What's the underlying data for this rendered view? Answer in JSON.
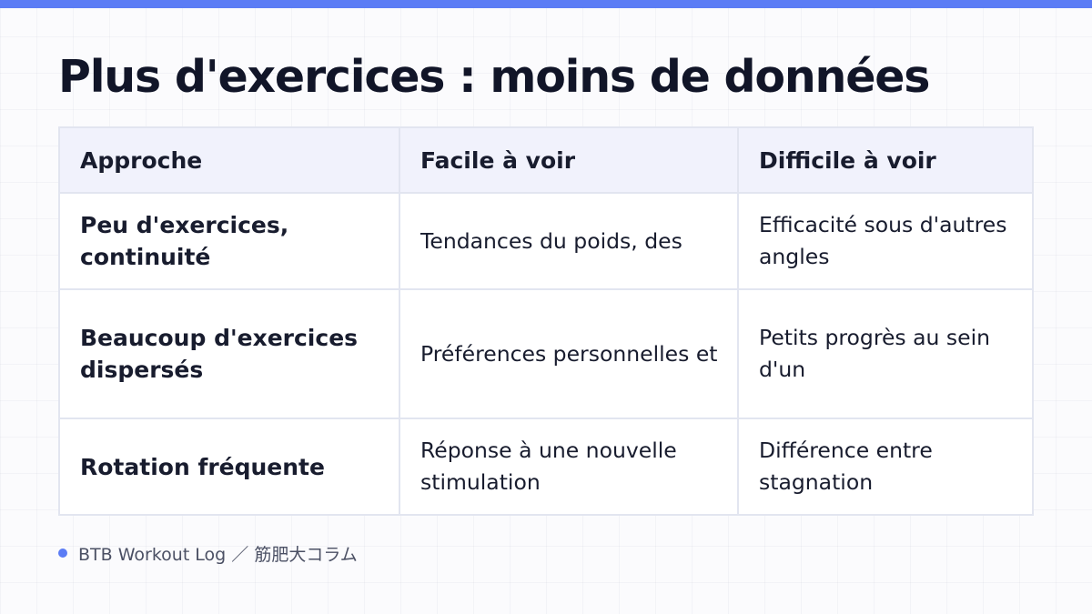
{
  "theme": {
    "accent": "#5b7cf5",
    "header_bg": "#f1f2fc",
    "border": "#e2e5f0",
    "text": "#151a2e"
  },
  "slide": {
    "title": "Plus d'exercices : moins de données"
  },
  "table": {
    "headers": [
      "Approche",
      "Facile à voir",
      "Difficile à voir"
    ],
    "rows": [
      {
        "approach": "Peu d'exercices, continuité",
        "easy": "Tendances du poids, des",
        "hard": "Efficacité sous d'autres angles"
      },
      {
        "approach": "Beaucoup d'exercices dispersés",
        "easy": "Préférences personnelles et",
        "hard": "Petits progrès au sein d'un"
      },
      {
        "approach": "Rotation fréquente",
        "easy": "Réponse à une nouvelle stimulation",
        "hard": "Différence entre stagnation"
      }
    ]
  },
  "footer": {
    "bullet_icon": "dot",
    "source": "BTB Workout Log ／ 筋肥大コラム"
  }
}
